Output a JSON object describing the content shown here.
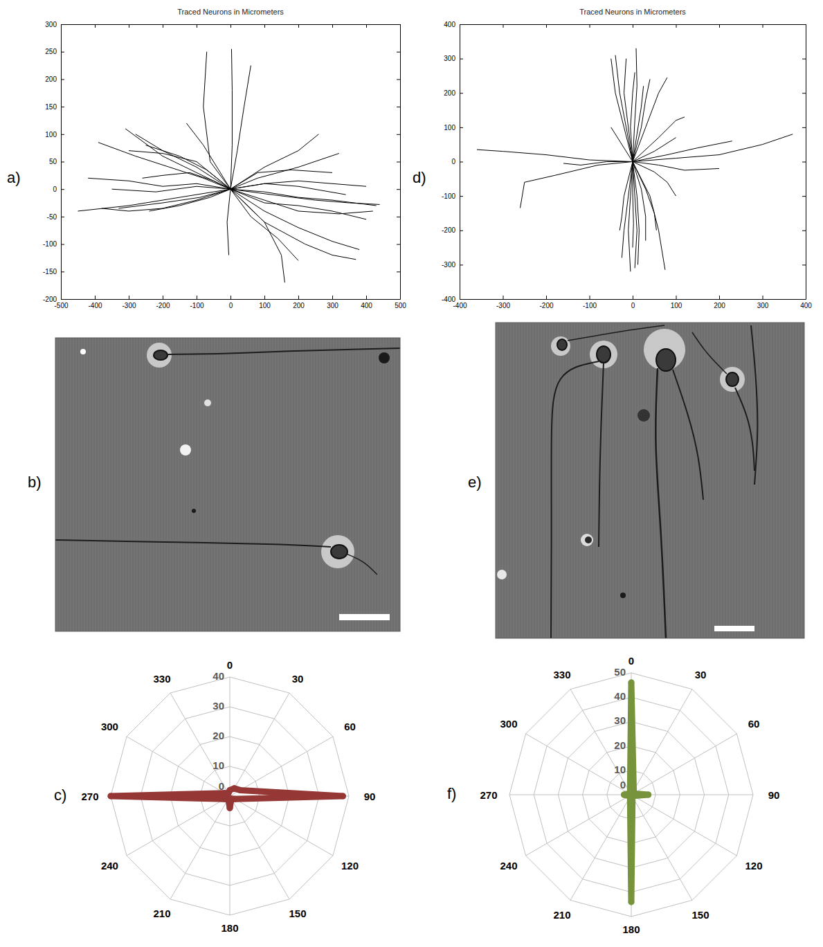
{
  "chart_data": [
    {
      "panel_label": "a)",
      "type": "line",
      "title": "Traced Neurons in Micrometers",
      "color": "#000000",
      "xlim": [
        -500,
        500
      ],
      "xticks": [
        -500,
        -400,
        -300,
        -200,
        -100,
        0,
        100,
        200,
        300,
        400,
        500
      ],
      "ylim": [
        -200,
        300
      ],
      "yticks": [
        -200,
        -150,
        -100,
        -50,
        0,
        50,
        100,
        150,
        200,
        250,
        300
      ],
      "series": [
        {
          "x": [
            0,
            -100,
            -200,
            -300,
            -420
          ],
          "values": [
            0,
            10,
            5,
            15,
            20
          ]
        },
        {
          "x": [
            0,
            -100,
            -200,
            -300,
            -450
          ],
          "values": [
            0,
            -10,
            -20,
            -30,
            -40
          ]
        },
        {
          "x": [
            0,
            -80,
            -180,
            -280,
            -390
          ],
          "values": [
            0,
            20,
            40,
            60,
            85
          ]
        },
        {
          "x": [
            0,
            -100,
            -200,
            -310
          ],
          "values": [
            0,
            30,
            60,
            110
          ]
        },
        {
          "x": [
            0,
            -90,
            -200,
            -330
          ],
          "values": [
            0,
            -15,
            -25,
            -35
          ]
        },
        {
          "x": [
            0,
            -100,
            -220,
            -350
          ],
          "values": [
            0,
            5,
            -5,
            0
          ]
        },
        {
          "x": [
            0,
            -70,
            -150,
            -250
          ],
          "values": [
            0,
            35,
            60,
            80
          ]
        },
        {
          "x": [
            0,
            -100,
            -200,
            -280
          ],
          "values": [
            0,
            40,
            70,
            100
          ]
        },
        {
          "x": [
            0,
            -60,
            -150,
            -240
          ],
          "values": [
            0,
            -15,
            -30,
            -40
          ]
        },
        {
          "x": [
            0,
            -50,
            -120,
            -200,
            -260
          ],
          "values": [
            0,
            15,
            30,
            25,
            20
          ]
        },
        {
          "x": [
            0,
            -80,
            -130
          ],
          "values": [
            0,
            80,
            120
          ]
        },
        {
          "x": [
            0,
            -60,
            -80,
            -70
          ],
          "values": [
            0,
            50,
            150,
            250
          ]
        },
        {
          "x": [
            0,
            5,
            5,
            3
          ],
          "values": [
            0,
            80,
            180,
            255
          ]
        },
        {
          "x": [
            0,
            20,
            40,
            60
          ],
          "values": [
            0,
            70,
            150,
            225
          ]
        },
        {
          "x": [
            0,
            -10,
            -5
          ],
          "values": [
            0,
            -60,
            -120
          ]
        },
        {
          "x": [
            0,
            100,
            200,
            300,
            430
          ],
          "values": [
            0,
            -5,
            -15,
            -20,
            -30
          ]
        },
        {
          "x": [
            0,
            100,
            200,
            300,
            400
          ],
          "values": [
            0,
            10,
            15,
            10,
            5
          ]
        },
        {
          "x": [
            0,
            100,
            200,
            320,
            420
          ],
          "values": [
            0,
            -20,
            -40,
            -45,
            -40
          ]
        },
        {
          "x": [
            0,
            100,
            200,
            300,
            380
          ],
          "values": [
            0,
            -40,
            -70,
            -95,
            -110
          ]
        },
        {
          "x": [
            0,
            100,
            220,
            300,
            370
          ],
          "values": [
            0,
            -60,
            -100,
            -120,
            -128
          ]
        },
        {
          "x": [
            0,
            100,
            200,
            260
          ],
          "values": [
            0,
            40,
            70,
            100
          ]
        },
        {
          "x": [
            0,
            80,
            200,
            320
          ],
          "values": [
            0,
            20,
            40,
            65
          ]
        },
        {
          "x": [
            0,
            100,
            200,
            300,
            400
          ],
          "values": [
            0,
            -25,
            -30,
            -40,
            -55
          ]
        },
        {
          "x": [
            0,
            100,
            150,
            160
          ],
          "values": [
            0,
            -60,
            -120,
            -170
          ]
        },
        {
          "x": [
            0,
            60,
            140,
            200
          ],
          "values": [
            0,
            -50,
            -90,
            -130
          ]
        },
        {
          "x": [
            0,
            100,
            200,
            340
          ],
          "values": [
            0,
            10,
            5,
            -10
          ]
        },
        {
          "x": [
            0,
            120,
            250,
            350,
            440
          ],
          "values": [
            0,
            -10,
            -20,
            -25,
            -28
          ]
        },
        {
          "x": [
            0,
            80,
            180,
            300
          ],
          "values": [
            0,
            30,
            35,
            30
          ]
        },
        {
          "x": [
            0,
            -100,
            -200,
            -300,
            -380
          ],
          "values": [
            0,
            -20,
            -35,
            -40,
            -35
          ]
        },
        {
          "x": [
            0,
            -100,
            -200,
            -300
          ],
          "values": [
            0,
            50,
            65,
            70
          ]
        }
      ]
    },
    {
      "panel_label": "d)",
      "type": "line",
      "title": "Traced Neurons in Micrometers",
      "color": "#000000",
      "xlim": [
        -400,
        400
      ],
      "xticks": [
        -400,
        -300,
        -200,
        -100,
        0,
        100,
        200,
        300,
        400
      ],
      "ylim": [
        -400,
        400
      ],
      "yticks": [
        -400,
        -300,
        -200,
        -100,
        0,
        100,
        200,
        300,
        400
      ],
      "series": [
        {
          "x": [
            0,
            -10,
            -20,
            -15
          ],
          "values": [
            0,
            100,
            200,
            300
          ]
        },
        {
          "x": [
            0,
            -15,
            -30,
            -40
          ],
          "values": [
            0,
            100,
            200,
            310
          ]
        },
        {
          "x": [
            0,
            5,
            10,
            8
          ],
          "values": [
            0,
            120,
            220,
            330
          ]
        },
        {
          "x": [
            0,
            -5,
            0,
            5
          ],
          "values": [
            0,
            100,
            200,
            260
          ]
        },
        {
          "x": [
            0,
            20,
            30,
            40
          ],
          "values": [
            0,
            100,
            180,
            240
          ]
        },
        {
          "x": [
            0,
            10,
            20,
            25
          ],
          "values": [
            0,
            80,
            160,
            220
          ]
        },
        {
          "x": [
            0,
            -5,
            -10,
            -5
          ],
          "values": [
            0,
            -100,
            -200,
            -320
          ]
        },
        {
          "x": [
            0,
            5,
            10,
            5
          ],
          "values": [
            0,
            -100,
            -200,
            -310
          ]
        },
        {
          "x": [
            0,
            -10,
            -20,
            -25
          ],
          "values": [
            0,
            -100,
            -200,
            -280
          ]
        },
        {
          "x": [
            0,
            0,
            2,
            0
          ],
          "values": [
            0,
            -90,
            -180,
            -250
          ]
        },
        {
          "x": [
            0,
            20,
            30,
            30
          ],
          "values": [
            0,
            -80,
            -160,
            -230
          ]
        },
        {
          "x": [
            0,
            40,
            60,
            75
          ],
          "values": [
            0,
            -100,
            -200,
            -315
          ]
        },
        {
          "x": [
            0,
            30,
            50,
            55
          ],
          "values": [
            0,
            -80,
            -150,
            -200
          ]
        },
        {
          "x": [
            0,
            -100,
            -200,
            -300,
            -360
          ],
          "values": [
            0,
            5,
            20,
            30,
            35
          ]
        },
        {
          "x": [
            0,
            -80,
            -180,
            -250,
            -260
          ],
          "values": [
            0,
            -10,
            -40,
            -60,
            -135
          ]
        },
        {
          "x": [
            0,
            100,
            200,
            300,
            370
          ],
          "values": [
            0,
            10,
            20,
            50,
            80
          ]
        },
        {
          "x": [
            0,
            80,
            150,
            230
          ],
          "values": [
            0,
            20,
            40,
            60
          ]
        },
        {
          "x": [
            0,
            60,
            120,
            200
          ],
          "values": [
            0,
            -10,
            -25,
            -20
          ]
        },
        {
          "x": [
            0,
            -60,
            -120,
            -160
          ],
          "values": [
            0,
            0,
            -10,
            -5
          ]
        },
        {
          "x": [
            0,
            50,
            100
          ],
          "values": [
            0,
            30,
            70
          ]
        },
        {
          "x": [
            0,
            30,
            60,
            80
          ],
          "values": [
            0,
            100,
            200,
            245
          ]
        },
        {
          "x": [
            0,
            -20,
            -40,
            -50
          ],
          "values": [
            0,
            100,
            200,
            300
          ]
        },
        {
          "x": [
            0,
            10,
            15,
            12
          ],
          "values": [
            0,
            -100,
            -200,
            -300
          ]
        },
        {
          "x": [
            0,
            -20,
            -25,
            -30
          ],
          "values": [
            0,
            -100,
            -160,
            -200
          ]
        },
        {
          "x": [
            0,
            50,
            80,
            100
          ],
          "values": [
            0,
            -30,
            -60,
            -100
          ]
        },
        {
          "x": [
            0,
            -30,
            -50
          ],
          "values": [
            0,
            60,
            100
          ]
        },
        {
          "x": [
            0,
            60,
            100,
            120
          ],
          "values": [
            0,
            70,
            120,
            130
          ]
        }
      ]
    },
    {
      "panel_label": "c)",
      "type": "radar",
      "color": "#953735",
      "categories": [
        "0",
        "30",
        "60",
        "90",
        "120",
        "150",
        "180",
        "210",
        "240",
        "270",
        "300",
        "330"
      ],
      "values": [
        2,
        3,
        4,
        38,
        2,
        1,
        4,
        1,
        2,
        40,
        2,
        1
      ],
      "ylim": [
        0,
        40
      ],
      "yticks": [
        0,
        10,
        20,
        30,
        40
      ]
    },
    {
      "panel_label": "f)",
      "type": "radar",
      "color": "#77933c",
      "categories": [
        "0",
        "30",
        "60",
        "90",
        "120",
        "150",
        "180",
        "210",
        "240",
        "270",
        "300",
        "330"
      ],
      "values": [
        46,
        2,
        1,
        7,
        1,
        1,
        44,
        1,
        1,
        3,
        1,
        1
      ],
      "ylim": [
        0,
        50
      ],
      "yticks": [
        0,
        10,
        20,
        30,
        40,
        50
      ]
    }
  ],
  "images": [
    {
      "panel_label": "b)"
    },
    {
      "panel_label": "e)"
    }
  ]
}
